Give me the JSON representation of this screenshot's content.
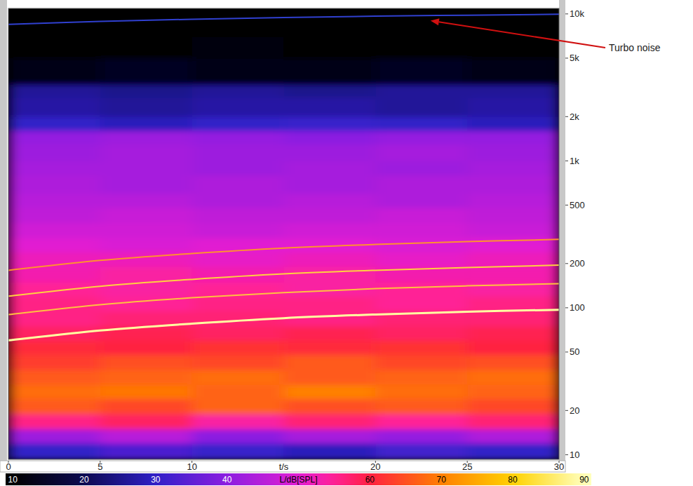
{
  "chart_data": {
    "type": "heatmap",
    "x_label": "t/s",
    "xlim": [
      0,
      30
    ],
    "xticks": [
      0,
      5,
      10,
      20,
      25,
      30
    ],
    "ylim": [
      9.3,
      10900
    ],
    "yticks": [
      10,
      20,
      50,
      100,
      200,
      500,
      {
        "value": 1000,
        "label": "1k"
      },
      {
        "value": 2000,
        "label": "2k"
      },
      {
        "value": 5000,
        "label": "5k"
      },
      {
        "value": 10000,
        "label": "10k"
      }
    ],
    "log": "y",
    "x_bins": [
      0,
      5,
      10,
      15,
      20,
      25,
      30
    ],
    "y_bins": [
      9.3,
      12,
      15,
      19,
      24,
      30,
      38,
      48,
      60,
      75,
      95,
      120,
      150,
      190,
      240,
      300,
      380,
      480,
      600,
      800,
      1000,
      1300,
      1600,
      2000,
      2700,
      3300,
      5000,
      7000,
      10900
    ],
    "cells": [
      [
        30,
        33,
        31,
        29,
        32,
        30
      ],
      [
        42,
        45,
        40,
        43,
        41,
        44
      ],
      [
        56,
        58,
        54,
        57,
        55,
        57
      ],
      [
        66,
        64,
        67,
        65,
        66,
        64
      ],
      [
        68,
        69,
        67,
        70,
        68,
        67
      ],
      [
        66,
        67,
        68,
        66,
        67,
        68
      ],
      [
        63,
        65,
        64,
        66,
        64,
        65
      ],
      [
        61,
        60,
        62,
        61,
        62,
        60
      ],
      [
        58,
        59,
        58,
        59,
        58,
        59
      ],
      [
        56,
        57,
        57,
        56,
        57,
        57
      ],
      [
        56,
        55,
        56,
        56,
        55,
        56
      ],
      [
        55,
        54,
        55,
        54,
        55,
        54
      ],
      [
        53,
        54,
        53,
        54,
        53,
        53
      ],
      [
        52,
        52,
        51,
        52,
        51,
        52
      ],
      [
        50,
        49,
        50,
        50,
        49,
        50
      ],
      [
        48,
        48,
        47,
        48,
        48,
        47
      ],
      [
        46,
        47,
        46,
        46,
        47,
        46
      ],
      [
        45,
        45,
        44,
        45,
        44,
        45
      ],
      [
        44,
        43,
        44,
        43,
        44,
        44
      ],
      [
        43,
        43,
        42,
        43,
        42,
        43
      ],
      [
        42,
        43,
        42,
        42,
        43,
        42
      ],
      [
        41,
        42,
        41,
        40,
        41,
        41
      ],
      [
        30,
        29,
        30,
        31,
        30,
        29
      ],
      [
        27,
        26,
        27,
        27,
        26,
        27
      ],
      [
        26,
        25,
        26,
        25,
        26,
        26
      ],
      [
        13,
        14,
        13,
        13,
        14,
        13
      ],
      [
        10,
        10,
        11,
        10,
        10,
        10
      ],
      [
        10,
        10,
        10,
        10,
        10,
        10
      ]
    ],
    "colorbar": {
      "label": "L/dB[SPL]",
      "range": [
        9,
        91
      ],
      "ticks": [
        10,
        20,
        30,
        40,
        60,
        70,
        80,
        90
      ]
    },
    "x": [
      0,
      5,
      10,
      15,
      20,
      25,
      30
    ],
    "series": [
      {
        "type": "line",
        "color": "#ffffa0",
        "values": [
          60,
          70,
          78,
          85,
          90,
          94,
          97
        ]
      },
      {
        "type": "line",
        "color": "#ffc040",
        "values": [
          90,
          105,
          117,
          127,
          135,
          141,
          146
        ]
      },
      {
        "type": "line",
        "color": "#ffd040",
        "values": [
          120,
          140,
          156,
          170,
          180,
          188,
          195
        ]
      },
      {
        "type": "line",
        "color": "#ff9030",
        "values": [
          180,
          210,
          234,
          255,
          270,
          282,
          292
        ]
      },
      {
        "type": "line",
        "color": "#3040d0",
        "values": [
          8500,
          8900,
          9200,
          9450,
          9650,
          9800,
          9950
        ]
      }
    ],
    "annotations": [
      {
        "text": "Turbo noise",
        "x": 23,
        "y": 9000
      }
    ]
  }
}
